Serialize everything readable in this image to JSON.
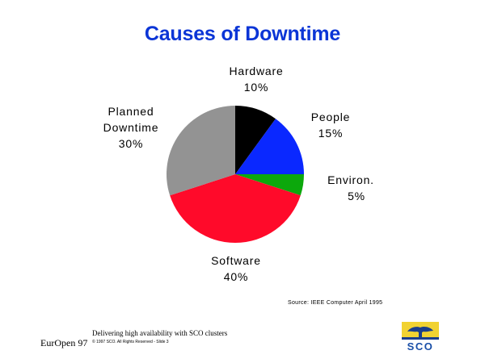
{
  "chart_data": {
    "type": "pie",
    "title": "Causes of Downtime",
    "start_angle_deg": 0,
    "direction": "clockwise",
    "slices": [
      {
        "label_lines": [
          "Hardware",
          "10%"
        ],
        "name": "Hardware",
        "value": 10,
        "color": "#000000"
      },
      {
        "label_lines": [
          "People",
          "15%"
        ],
        "name": "People",
        "value": 15,
        "color": "#0a28ff"
      },
      {
        "label_lines": [
          "Environ.",
          "5%"
        ],
        "name": "Environ.",
        "value": 5,
        "color": "#0ca80c"
      },
      {
        "label_lines": [
          "Software",
          "40%"
        ],
        "name": "Software",
        "value": 40,
        "color": "#ff0a2a"
      },
      {
        "label_lines": [
          "Planned",
          "Downtime",
          "30%"
        ],
        "name": "Planned Downtime",
        "value": 30,
        "color": "#939393"
      }
    ],
    "legend": "none",
    "grid": false
  },
  "source_note": "Source:  IEEE Computer April 1995",
  "footer": {
    "org": "EurOpen 97",
    "tagline": "Delivering high availability with SCO clusters",
    "copyright": "© 1997 SCO. All Rights Reserved - Slide 3"
  },
  "logo": {
    "text": "SCO",
    "colors": {
      "text": "#1a4fa8",
      "tree": "#1a3e8c",
      "sky": "#f1d232"
    }
  },
  "title_color": "#0b35d6"
}
